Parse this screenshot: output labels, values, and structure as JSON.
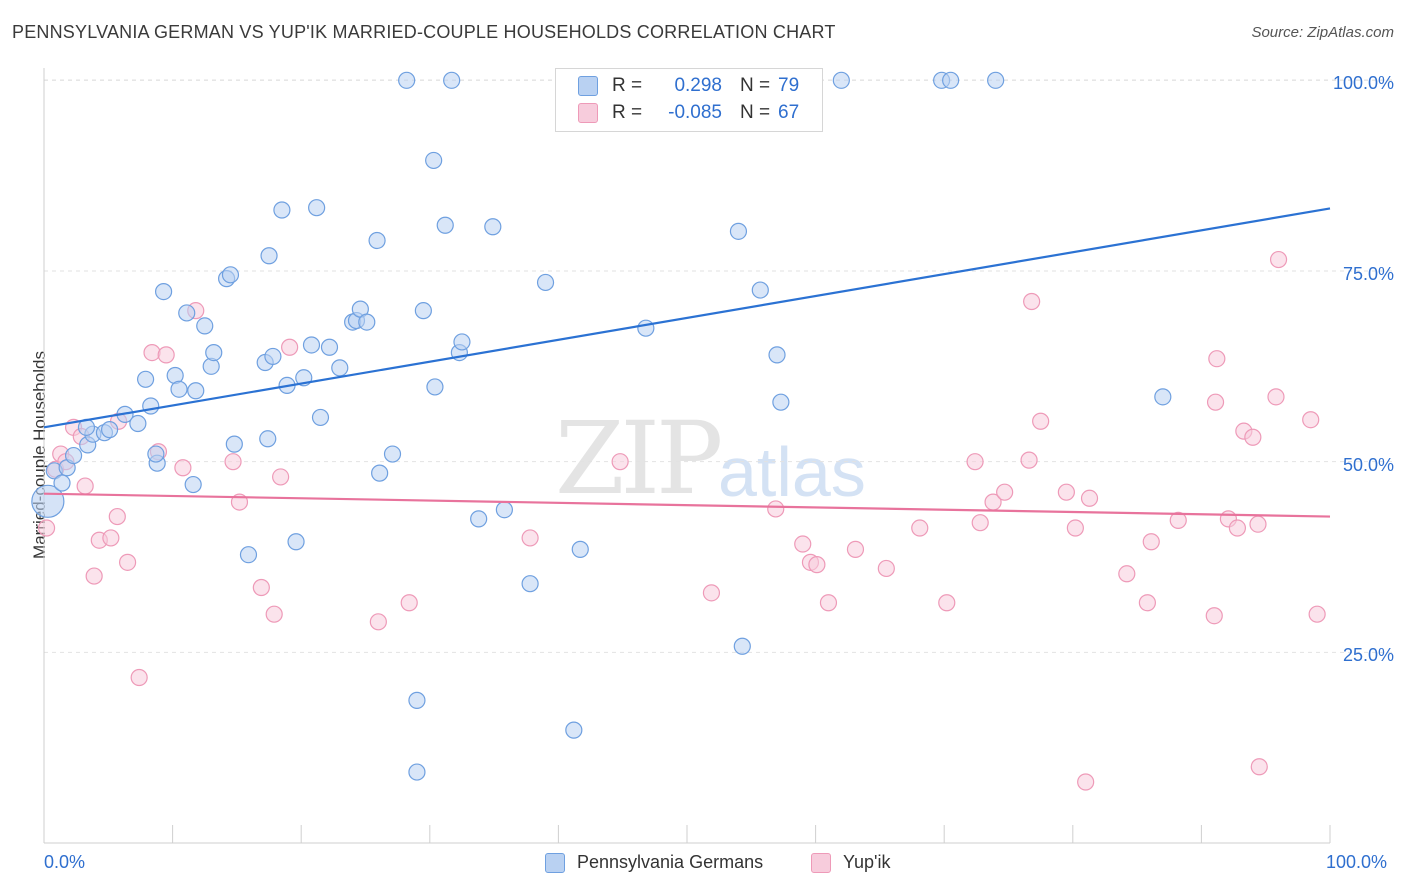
{
  "title": "PENNSYLVANIA GERMAN VS YUP'IK MARRIED-COUPLE HOUSEHOLDS CORRELATION CHART",
  "source": "Source: ZipAtlas.com",
  "watermark": {
    "zip": "ZIP",
    "atlas": "atlas"
  },
  "legend": {
    "rows": [
      {
        "r_label": "R =",
        "r_value": "0.298",
        "n_label": "N =",
        "n_value": "79"
      },
      {
        "r_label": "R =",
        "r_value": "-0.085",
        "n_label": "N =",
        "n_value": "67"
      }
    ]
  },
  "bottom_legend": [
    "Pennsylvania Germans",
    "Yup'ik"
  ],
  "colors": {
    "blue": "#6fa0e0",
    "blue_fill": "#b9d1f2",
    "blue_line": "#2b72d3",
    "pink": "#ee9ab8",
    "pink_fill": "#f7ccdc",
    "pink_line": "#e8739c",
    "tick_text": "#2f6fcf"
  },
  "chart_data": {
    "type": "scatter",
    "title": "PENNSYLVANIA GERMAN VS YUP'IK MARRIED-COUPLE HOUSEHOLDS CORRELATION CHART",
    "xlabel": "",
    "ylabel": "Married-couple Households",
    "xlim": [
      0,
      100
    ],
    "ylim": [
      0,
      103
    ],
    "x_tick_labels": [
      "0.0%",
      "100.0%"
    ],
    "y_ticks": [
      25,
      50,
      75,
      100
    ],
    "y_tick_labels": [
      "25.0%",
      "50.0%",
      "75.0%",
      "100.0%"
    ],
    "grid": true,
    "legend_position": "top-center",
    "series": [
      {
        "name": "Pennsylvania Germans",
        "R": 0.298,
        "N": 79,
        "trend": {
          "x": [
            0,
            100
          ],
          "y": [
            54.5,
            83.2
          ]
        },
        "points": [
          [
            0.3,
            44.8
          ],
          [
            0.8,
            48.8
          ],
          [
            1.4,
            47.2
          ],
          [
            1.8,
            49.2
          ],
          [
            2.3,
            50.8
          ],
          [
            3.4,
            52.2
          ],
          [
            3.8,
            53.6
          ],
          [
            3.3,
            54.5
          ],
          [
            4.7,
            53.8
          ],
          [
            5.1,
            54.2
          ],
          [
            6.3,
            56.2
          ],
          [
            7.3,
            55.0
          ],
          [
            8.3,
            57.3
          ],
          [
            7.9,
            60.8
          ],
          [
            8.8,
            49.8
          ],
          [
            8.7,
            51.0
          ],
          [
            9.3,
            72.3
          ],
          [
            10.2,
            61.3
          ],
          [
            10.5,
            59.5
          ],
          [
            11.1,
            69.5
          ],
          [
            11.8,
            59.3
          ],
          [
            11.6,
            47.0
          ],
          [
            12.5,
            67.8
          ],
          [
            13.0,
            62.5
          ],
          [
            13.2,
            64.3
          ],
          [
            14.2,
            74.0
          ],
          [
            14.5,
            74.5
          ],
          [
            14.8,
            52.3
          ],
          [
            15.9,
            37.8
          ],
          [
            17.2,
            63.0
          ],
          [
            17.5,
            77.0
          ],
          [
            17.4,
            53.0
          ],
          [
            17.8,
            63.8
          ],
          [
            18.5,
            83.0
          ],
          [
            18.9,
            60.0
          ],
          [
            19.6,
            39.5
          ],
          [
            20.2,
            61.0
          ],
          [
            20.8,
            65.3
          ],
          [
            21.2,
            83.3
          ],
          [
            21.5,
            55.8
          ],
          [
            22.2,
            65.0
          ],
          [
            23.0,
            62.3
          ],
          [
            24.0,
            68.3
          ],
          [
            24.3,
            68.5
          ],
          [
            24.6,
            70.0
          ],
          [
            25.1,
            68.3
          ],
          [
            25.9,
            79.0
          ],
          [
            26.1,
            48.5
          ],
          [
            27.1,
            51.0
          ],
          [
            28.2,
            100.0
          ],
          [
            29.0,
            9.3
          ],
          [
            29.0,
            18.7
          ],
          [
            29.5,
            69.8
          ],
          [
            30.3,
            89.5
          ],
          [
            30.4,
            59.8
          ],
          [
            31.2,
            81.0
          ],
          [
            31.7,
            100.0
          ],
          [
            32.3,
            64.3
          ],
          [
            32.5,
            65.7
          ],
          [
            33.8,
            42.5
          ],
          [
            34.9,
            80.8
          ],
          [
            35.8,
            43.7
          ],
          [
            37.8,
            34.0
          ],
          [
            39.0,
            73.5
          ],
          [
            41.2,
            14.8
          ],
          [
            41.7,
            38.5
          ],
          [
            46.8,
            67.5
          ],
          [
            50.5,
            100.0
          ],
          [
            54.0,
            80.2
          ],
          [
            54.3,
            25.8
          ],
          [
            55.7,
            72.5
          ],
          [
            57.0,
            64.0
          ],
          [
            57.3,
            57.8
          ],
          [
            58.5,
            100.0
          ],
          [
            62.0,
            100.0
          ],
          [
            69.8,
            100.0
          ],
          [
            70.5,
            100.0
          ],
          [
            74.0,
            100.0
          ],
          [
            87.0,
            58.5
          ]
        ]
      },
      {
        "name": "Yup'ik",
        "R": -0.085,
        "N": 67,
        "trend": {
          "x": [
            0,
            100
          ],
          "y": [
            45.8,
            42.8
          ]
        },
        "points": [
          [
            0.2,
            41.3
          ],
          [
            0.9,
            49.0
          ],
          [
            1.3,
            51.0
          ],
          [
            1.7,
            50.0
          ],
          [
            2.3,
            54.5
          ],
          [
            2.9,
            53.3
          ],
          [
            3.2,
            46.8
          ],
          [
            3.9,
            35.0
          ],
          [
            4.3,
            39.7
          ],
          [
            5.2,
            40.0
          ],
          [
            5.8,
            55.3
          ],
          [
            5.7,
            42.8
          ],
          [
            6.5,
            36.8
          ],
          [
            7.4,
            21.7
          ],
          [
            8.4,
            64.3
          ],
          [
            8.9,
            51.3
          ],
          [
            9.5,
            64.0
          ],
          [
            10.8,
            49.2
          ],
          [
            11.8,
            69.8
          ],
          [
            14.7,
            50.0
          ],
          [
            15.2,
            44.7
          ],
          [
            16.9,
            33.5
          ],
          [
            17.9,
            30.0
          ],
          [
            18.4,
            48.0
          ],
          [
            19.1,
            65.0
          ],
          [
            26.0,
            29.0
          ],
          [
            28.4,
            31.5
          ],
          [
            37.8,
            40.0
          ],
          [
            44.8,
            50.0
          ],
          [
            51.9,
            32.8
          ],
          [
            56.9,
            43.8
          ],
          [
            59.0,
            39.2
          ],
          [
            59.6,
            36.8
          ],
          [
            60.1,
            36.5
          ],
          [
            61.0,
            31.5
          ],
          [
            63.1,
            38.5
          ],
          [
            65.5,
            36.0
          ],
          [
            68.1,
            41.3
          ],
          [
            70.2,
            31.5
          ],
          [
            72.4,
            50.0
          ],
          [
            72.8,
            42.0
          ],
          [
            73.8,
            44.7
          ],
          [
            74.7,
            46.0
          ],
          [
            76.6,
            50.2
          ],
          [
            76.8,
            71.0
          ],
          [
            77.5,
            55.3
          ],
          [
            79.5,
            46.0
          ],
          [
            80.2,
            41.3
          ],
          [
            81.3,
            45.2
          ],
          [
            81.0,
            8.0
          ],
          [
            84.2,
            35.3
          ],
          [
            85.8,
            31.5
          ],
          [
            86.1,
            39.5
          ],
          [
            88.2,
            42.3
          ],
          [
            91.2,
            63.5
          ],
          [
            91.0,
            29.8
          ],
          [
            91.1,
            57.8
          ],
          [
            92.1,
            42.5
          ],
          [
            92.8,
            41.3
          ],
          [
            93.3,
            54.0
          ],
          [
            94.0,
            53.2
          ],
          [
            94.4,
            41.8
          ],
          [
            94.5,
            10.0
          ],
          [
            95.8,
            58.5
          ],
          [
            96.0,
            76.5
          ],
          [
            98.5,
            55.5
          ],
          [
            99.0,
            30.0
          ]
        ]
      }
    ]
  }
}
